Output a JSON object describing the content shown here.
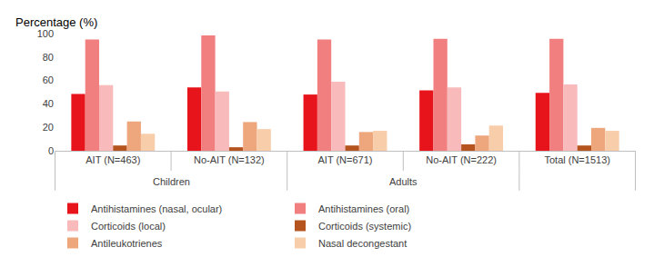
{
  "chart_data": {
    "type": "bar",
    "y_label": "Percentage (%)",
    "categories": [
      "AIT (N=463)",
      "No-AIT (N=132)",
      "AIT (N=671)",
      "No-AIT (N=222)",
      "Total (N=1513)"
    ],
    "groups": [
      {
        "label": "Children",
        "from": 0,
        "to": 1
      },
      {
        "label": "Adults",
        "from": 2,
        "to": 3
      }
    ],
    "series": [
      {
        "name": "Antihistamines (nasal, ocular)",
        "color": "#e8141c",
        "values": [
          48.5,
          54,
          48,
          51.5,
          49.5
        ]
      },
      {
        "name": "Antihistamines (oral)",
        "color": "#f27f7f",
        "values": [
          95,
          98.5,
          95,
          95.5,
          95.5
        ]
      },
      {
        "name": "Corticoids (local)",
        "color": "#f8baba",
        "values": [
          56,
          50.5,
          59,
          54,
          56.5
        ]
      },
      {
        "name": "Corticoids (systemic)",
        "color": "#b5541f",
        "values": [
          4.5,
          3,
          4.5,
          5.5,
          4.5
        ]
      },
      {
        "name": "Antileukotrienes",
        "color": "#eea67c",
        "values": [
          25,
          24.5,
          16,
          13,
          19.5
        ]
      },
      {
        "name": "Nasal decongestant",
        "color": "#f8cdaa",
        "values": [
          14.5,
          18.5,
          17,
          21.5,
          17
        ]
      }
    ],
    "ylim": [
      0,
      100
    ],
    "yticks": [
      0,
      20,
      40,
      60,
      80,
      100
    ],
    "grid": false,
    "legend": "bottom"
  }
}
